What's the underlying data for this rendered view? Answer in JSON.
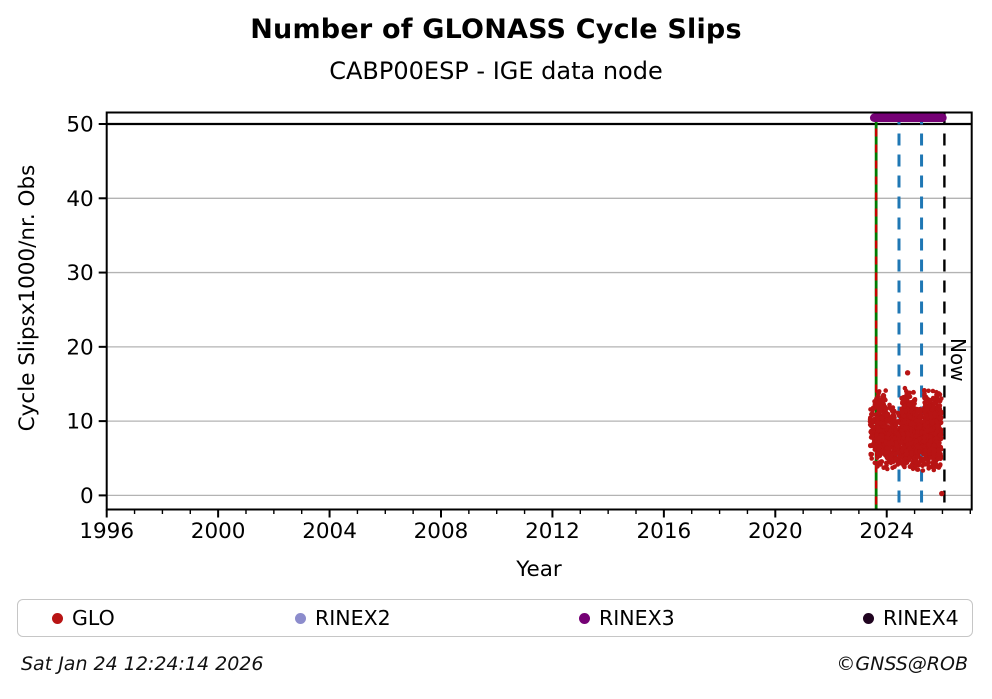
{
  "header": {
    "title": "Number of GLONASS Cycle Slips",
    "subtitle": "CABP00ESP - IGE data node"
  },
  "footer": {
    "timestamp": "Sat Jan 24 12:24:14 2026",
    "credit": "©GNSS@ROB"
  },
  "legend": {
    "items": [
      {
        "label": "GLO",
        "color": "#b81414"
      },
      {
        "label": "RINEX2",
        "color": "#8c8ccc"
      },
      {
        "label": "RINEX3",
        "color": "#750175"
      },
      {
        "label": "RINEX4",
        "color": "#200420"
      }
    ]
  },
  "chart_data": {
    "type": "scatter",
    "title": "Number of GLONASS Cycle Slips",
    "subtitle": "CABP00ESP - IGE data node",
    "xlabel": "Year",
    "ylabel": "Cycle Slipsx1000/nr. Obs",
    "now_label": "Now",
    "xlim": [
      1996,
      2027.05
    ],
    "ylim": [
      -1.9,
      51.55
    ],
    "x_major_ticks": [
      1996,
      2000,
      2004,
      2008,
      2012,
      2016,
      2020,
      2024
    ],
    "x_minor_step": 1,
    "y_ticks": [
      0,
      10,
      20,
      30,
      40,
      50
    ],
    "grid_on": true,
    "grid_color": "#b3b3b3",
    "cap_line_y": 50,
    "legend_position": "bottom",
    "series": [
      {
        "name": "GLO",
        "color": "#b81414",
        "marker": "dot",
        "description": "Dense noisy cluster of daily values from ~2023.4 to ~2025.96, mostly between 3 and 14.5 cycle slips x1000/nr.Obs"
      }
    ],
    "cluster_segments": [
      {
        "x0": 2023.4,
        "x1": 2023.63,
        "n": 70,
        "y_min": 3.8,
        "y_max": 13.2
      },
      {
        "x0": 2023.63,
        "x1": 2023.97,
        "n": 270,
        "y_min": 3.4,
        "y_max": 14.4
      },
      {
        "x0": 2023.97,
        "x1": 2024.28,
        "n": 190,
        "y_min": 3.2,
        "y_max": 12.8
      },
      {
        "x0": 2024.28,
        "x1": 2024.53,
        "n": 120,
        "y_min": 3.4,
        "y_max": 11.2
      },
      {
        "x0": 2024.53,
        "x1": 2025.03,
        "n": 430,
        "y_min": 3.2,
        "y_max": 14.6
      },
      {
        "x0": 2025.03,
        "x1": 2025.34,
        "n": 150,
        "y_min": 2.6,
        "y_max": 12.2
      },
      {
        "x0": 2025.34,
        "x1": 2025.96,
        "n": 470,
        "y_min": 3.0,
        "y_max": 14.4
      }
    ],
    "outlier_points": [
      {
        "x": 2024.75,
        "y": 16.5
      },
      {
        "x": 2025.975,
        "y": 0.25
      }
    ],
    "event_lines": [
      {
        "x": 2023.62,
        "color": "#007b00",
        "style": "solid",
        "width": 2.8,
        "name": "data-start-line-green"
      },
      {
        "x": 2023.62,
        "color": "#cc0000",
        "style": "dashed",
        "width": 2.4,
        "dash": "8,8",
        "name": "data-start-line-red-dashed"
      },
      {
        "x": 2024.44,
        "color": "#1f77b4",
        "style": "dashed",
        "width": 3.0,
        "dash": "12,9",
        "name": "event-line-blue-1"
      },
      {
        "x": 2025.25,
        "color": "#1f77b4",
        "style": "dashed",
        "width": 3.0,
        "dash": "12,9",
        "name": "event-line-blue-2"
      },
      {
        "x": 2026.07,
        "color": "#000000",
        "style": "dashed",
        "width": 2.4,
        "dash": "12,9",
        "name": "now-line",
        "label": "Now"
      }
    ],
    "availability_bar": {
      "x_start": 2023.55,
      "x_end": 2026.0,
      "y": 50.85,
      "color": "#750175",
      "name": "rinex3-availability-bar"
    },
    "seed": 42
  }
}
